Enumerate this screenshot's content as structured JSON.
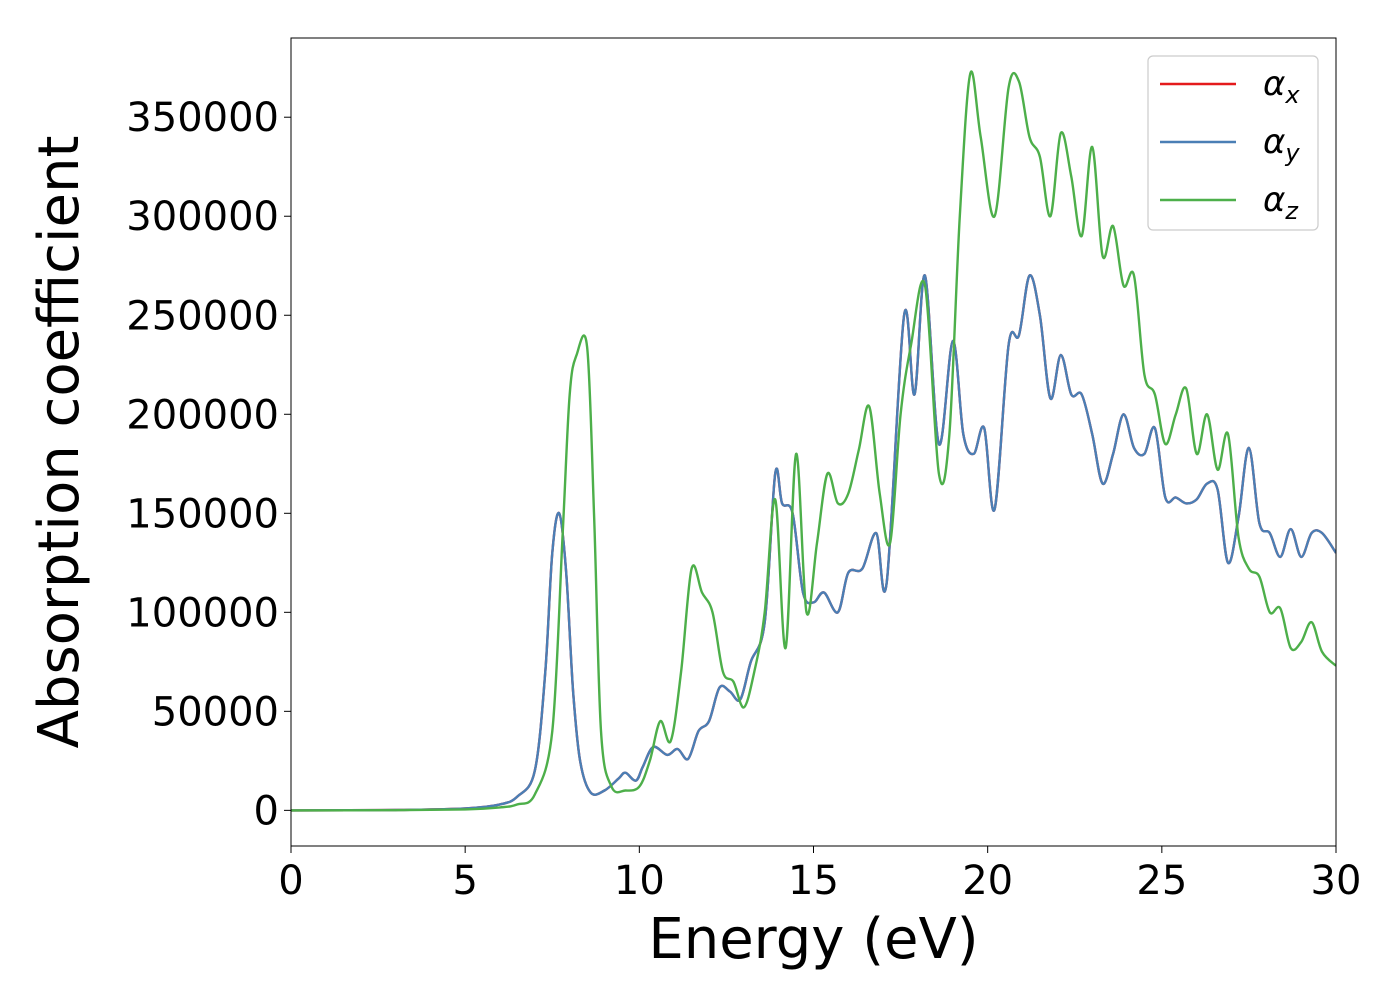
{
  "chart_data": {
    "type": "line",
    "xlabel": "Energy (eV)",
    "ylabel": "Absorption coefficient",
    "xlim": [
      0,
      30
    ],
    "ylim": [
      -18000,
      390000
    ],
    "xticks": [
      0,
      5,
      10,
      15,
      20,
      25,
      30
    ],
    "xtick_labels": [
      "0",
      "5",
      "10",
      "15",
      "20",
      "25",
      "30"
    ],
    "yticks": [
      0,
      50000,
      100000,
      150000,
      200000,
      250000,
      300000,
      350000
    ],
    "ytick_labels": [
      "0",
      "50000",
      "100000",
      "150000",
      "200000",
      "250000",
      "300000",
      "350000"
    ],
    "grid": false,
    "legend_position": "top-right",
    "series": [
      {
        "name": "αx",
        "symbol": "α",
        "sub": "x",
        "color": "#e41a1c",
        "x": [
          0,
          3,
          5,
          6,
          6.5,
          7,
          7.3,
          7.5,
          7.7,
          7.9,
          8.1,
          8.3,
          8.6,
          9,
          9.4,
          9.6,
          9.9,
          10.1,
          10.4,
          10.8,
          11.1,
          11.4,
          11.7,
          12,
          12.3,
          12.6,
          12.9,
          13.2,
          13.6,
          13.9,
          14.1,
          14.4,
          14.7,
          15.0,
          15.3,
          15.7,
          16.0,
          16.4,
          16.8,
          17.1,
          17.6,
          17.9,
          18.2,
          18.6,
          19.0,
          19.3,
          19.6,
          19.9,
          20.2,
          20.6,
          20.9,
          21.2,
          21.5,
          21.8,
          22.1,
          22.4,
          22.7,
          23.0,
          23.3,
          23.6,
          23.9,
          24.2,
          24.5,
          24.8,
          25.1,
          25.4,
          25.7,
          26.0,
          26.3,
          26.6,
          26.9,
          27.2,
          27.5,
          27.8,
          28.1,
          28.4,
          28.7,
          29.0,
          29.3,
          29.6,
          30
        ],
        "y": [
          0,
          200,
          1000,
          3000,
          7000,
          20000,
          70000,
          130000,
          150000,
          120000,
          60000,
          25000,
          9000,
          10000,
          16000,
          19000,
          15000,
          22000,
          32000,
          28000,
          31000,
          26000,
          40000,
          45000,
          62000,
          60000,
          56000,
          75000,
          95000,
          170000,
          155000,
          150000,
          110000,
          105000,
          110000,
          100000,
          120000,
          122000,
          140000,
          115000,
          250000,
          210000,
          270000,
          185000,
          237000,
          190000,
          180000,
          193000,
          152000,
          235000,
          240000,
          270000,
          250000,
          208000,
          230000,
          210000,
          210000,
          190000,
          165000,
          180000,
          200000,
          183000,
          180000,
          193000,
          158000,
          158000,
          155000,
          157000,
          165000,
          162000,
          125000,
          148000,
          183000,
          145000,
          140000,
          128000,
          142000,
          128000,
          140000,
          140000,
          130000
        ]
      },
      {
        "name": "αy",
        "symbol": "α",
        "sub": "y",
        "color": "#4a7fb5",
        "x": [
          0,
          3,
          5,
          6,
          6.5,
          7,
          7.3,
          7.5,
          7.7,
          7.9,
          8.1,
          8.3,
          8.6,
          9,
          9.4,
          9.6,
          9.9,
          10.1,
          10.4,
          10.8,
          11.1,
          11.4,
          11.7,
          12,
          12.3,
          12.6,
          12.9,
          13.2,
          13.6,
          13.9,
          14.1,
          14.4,
          14.7,
          15.0,
          15.3,
          15.7,
          16.0,
          16.4,
          16.8,
          17.1,
          17.6,
          17.9,
          18.2,
          18.6,
          19.0,
          19.3,
          19.6,
          19.9,
          20.2,
          20.6,
          20.9,
          21.2,
          21.5,
          21.8,
          22.1,
          22.4,
          22.7,
          23.0,
          23.3,
          23.6,
          23.9,
          24.2,
          24.5,
          24.8,
          25.1,
          25.4,
          25.7,
          26.0,
          26.3,
          26.6,
          26.9,
          27.2,
          27.5,
          27.8,
          28.1,
          28.4,
          28.7,
          29.0,
          29.3,
          29.6,
          30
        ],
        "y": [
          0,
          200,
          1000,
          3000,
          7000,
          20000,
          70000,
          130000,
          150000,
          120000,
          60000,
          25000,
          9000,
          10000,
          16000,
          19000,
          15000,
          22000,
          32000,
          28000,
          31000,
          26000,
          40000,
          45000,
          62000,
          60000,
          56000,
          75000,
          95000,
          170000,
          155000,
          150000,
          110000,
          105000,
          110000,
          100000,
          120000,
          122000,
          140000,
          115000,
          250000,
          210000,
          270000,
          185000,
          237000,
          190000,
          180000,
          193000,
          152000,
          235000,
          240000,
          270000,
          250000,
          208000,
          230000,
          210000,
          210000,
          190000,
          165000,
          180000,
          200000,
          183000,
          180000,
          193000,
          158000,
          158000,
          155000,
          157000,
          165000,
          162000,
          125000,
          148000,
          183000,
          145000,
          140000,
          128000,
          142000,
          128000,
          140000,
          140000,
          130000
        ]
      },
      {
        "name": "αz",
        "symbol": "α",
        "sub": "z",
        "color": "#4daf4a",
        "x": [
          0,
          3,
          5,
          6,
          6.5,
          7,
          7.5,
          7.8,
          8.0,
          8.2,
          8.5,
          8.7,
          8.9,
          9.2,
          9.6,
          10.0,
          10.3,
          10.6,
          10.9,
          11.2,
          11.5,
          11.8,
          12.1,
          12.4,
          12.7,
          13.0,
          13.3,
          13.6,
          13.9,
          14.2,
          14.5,
          14.8,
          15.1,
          15.4,
          15.7,
          16.0,
          16.3,
          16.6,
          16.9,
          17.2,
          17.5,
          17.8,
          18.2,
          18.6,
          18.9,
          19.2,
          19.5,
          19.8,
          20.2,
          20.6,
          20.9,
          21.2,
          21.5,
          21.8,
          22.1,
          22.4,
          22.7,
          23.0,
          23.3,
          23.6,
          23.9,
          24.2,
          24.5,
          24.8,
          25.1,
          25.4,
          25.7,
          26.0,
          26.3,
          26.6,
          26.9,
          27.2,
          27.5,
          27.8,
          28.1,
          28.4,
          28.7,
          29.0,
          29.3,
          29.6,
          30
        ],
        "y": [
          0,
          100,
          500,
          1500,
          3000,
          8000,
          40000,
          140000,
          210000,
          230000,
          234000,
          150000,
          40000,
          12000,
          10000,
          12000,
          25000,
          45000,
          35000,
          70000,
          122000,
          110000,
          100000,
          70000,
          65000,
          52000,
          70000,
          100000,
          157000,
          82000,
          180000,
          100000,
          135000,
          170000,
          155000,
          160000,
          182000,
          204000,
          160000,
          135000,
          200000,
          235000,
          265000,
          170000,
          190000,
          300000,
          372000,
          340000,
          300000,
          365000,
          368000,
          340000,
          330000,
          300000,
          342000,
          320000,
          290000,
          335000,
          280000,
          295000,
          265000,
          270000,
          220000,
          210000,
          185000,
          200000,
          213000,
          180000,
          200000,
          172000,
          190000,
          138000,
          122000,
          118000,
          100000,
          102000,
          82000,
          85000,
          95000,
          80000,
          73000
        ]
      }
    ]
  }
}
